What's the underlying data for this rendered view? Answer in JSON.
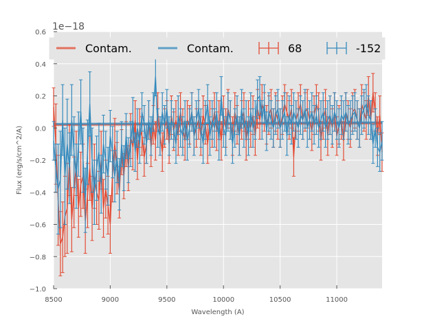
{
  "chart_data": {
    "type": "line",
    "xlabel": "Wavelength (A)",
    "ylabel": "Flux (erg/s/cm^2/A)",
    "y_offset_label": "1e−18",
    "xlim": [
      8500,
      11400
    ],
    "ylim": [
      -1.0,
      0.6
    ],
    "x_ticks": [
      8500,
      9000,
      9500,
      10000,
      10500,
      11000
    ],
    "x_tick_labels": [
      "8500",
      "9000",
      "9500",
      "10000",
      "10500",
      "11000"
    ],
    "y_ticks": [
      -1.0,
      -0.8,
      -0.6,
      -0.4,
      -0.2,
      0.0,
      0.2,
      0.4,
      0.6
    ],
    "y_tick_labels": [
      "−1.0",
      "−0.8",
      "−0.6",
      "−0.4",
      "−0.2",
      "0.0",
      "0.2",
      "0.4",
      "0.6"
    ],
    "grid": true,
    "legend_position": "top",
    "legend": [
      {
        "label": "Contam.",
        "kind": "line",
        "color": "#E24A33"
      },
      {
        "label": "Contam.",
        "kind": "line",
        "color": "#348ABD"
      },
      {
        "label": "68",
        "kind": "errorbar",
        "color": "#E24A33"
      },
      {
        "label": "-152",
        "kind": "errorbar",
        "color": "#348ABD"
      }
    ],
    "colors": {
      "red": "#E24A33",
      "blue": "#348ABD",
      "background": "#E5E5E5",
      "grid": "#FFFFFF"
    },
    "x": [
      8500,
      8520,
      8540,
      8560,
      8580,
      8600,
      8620,
      8640,
      8660,
      8680,
      8700,
      8720,
      8740,
      8760,
      8780,
      8800,
      8820,
      8840,
      8860,
      8880,
      8900,
      8920,
      8940,
      8960,
      8980,
      9000,
      9020,
      9040,
      9060,
      9080,
      9100,
      9120,
      9140,
      9160,
      9180,
      9200,
      9220,
      9240,
      9260,
      9280,
      9300,
      9320,
      9340,
      9360,
      9380,
      9400,
      9420,
      9440,
      9460,
      9480,
      9500,
      9520,
      9540,
      9560,
      9580,
      9600,
      9620,
      9640,
      9660,
      9680,
      9700,
      9720,
      9740,
      9760,
      9780,
      9800,
      9820,
      9840,
      9860,
      9880,
      9900,
      9920,
      9940,
      9960,
      9980,
      10000,
      10020,
      10040,
      10060,
      10080,
      10100,
      10120,
      10140,
      10160,
      10180,
      10200,
      10220,
      10240,
      10260,
      10280,
      10300,
      10320,
      10340,
      10360,
      10380,
      10400,
      10420,
      10440,
      10460,
      10480,
      10500,
      10520,
      10540,
      10560,
      10580,
      10600,
      10620,
      10640,
      10660,
      10680,
      10700,
      10720,
      10740,
      10760,
      10780,
      10800,
      10820,
      10840,
      10860,
      10880,
      10900,
      10920,
      10940,
      10960,
      10980,
      11000,
      11020,
      11040,
      11060,
      11080,
      11100,
      11120,
      11140,
      11160,
      11180,
      11200,
      11220,
      11240,
      11260,
      11280,
      11300,
      11320,
      11340,
      11360,
      11380,
      11400
    ],
    "series": [
      {
        "label": "68",
        "color": "#E24A33",
        "y": [
          0.13,
          -0.1,
          -0.45,
          -0.72,
          -0.68,
          -0.55,
          -0.5,
          -0.2,
          -0.57,
          -0.4,
          -0.22,
          -0.5,
          -0.35,
          -0.3,
          -0.58,
          -0.42,
          -0.25,
          -0.5,
          -0.3,
          -0.4,
          -0.45,
          -0.2,
          -0.5,
          -0.38,
          -0.48,
          -0.6,
          -0.3,
          -0.1,
          -0.25,
          -0.4,
          -0.15,
          -0.3,
          -0.1,
          -0.25,
          -0.05,
          -0.12,
          0.05,
          -0.2,
          0.0,
          -0.05,
          -0.18,
          -0.1,
          0.05,
          -0.12,
          0.02,
          -0.08,
          0.1,
          -0.05,
          -0.15,
          0.0,
          0.05,
          -0.1,
          0.08,
          -0.02,
          0.05,
          -0.05,
          0.1,
          0.0,
          -0.08,
          0.05,
          0.02,
          0.1,
          -0.05,
          0.0,
          0.05,
          -0.05,
          0.08,
          0.02,
          -0.1,
          0.05,
          0.0,
          0.1,
          -0.02,
          0.05,
          -0.08,
          0.08,
          0.0,
          0.12,
          0.05,
          -0.05,
          0.1,
          0.02,
          -0.05,
          0.05,
          0.1,
          -0.08,
          0.05,
          0.0,
          0.08,
          -0.05,
          0.12,
          0.05,
          0.15,
          0.1,
          0.02,
          0.08,
          0.12,
          0.0,
          0.1,
          0.05,
          0.0,
          0.08,
          0.15,
          0.1,
          0.05,
          0.12,
          -0.18,
          0.05,
          0.1,
          0.15,
          0.05,
          0.1,
          0.12,
          0.05,
          -0.02,
          0.08,
          0.15,
          0.1,
          -0.08,
          0.05,
          0.12,
          -0.05,
          0.08,
          0.0,
          0.1,
          -0.05,
          0.02,
          0.05,
          -0.08,
          0.1,
          0.05,
          0.0,
          0.1,
          0.12,
          0.05,
          0.0,
          0.15,
          0.1,
          0.05,
          0.2,
          0.05,
          0.22,
          0.1,
          -0.05,
          0.08,
          -0.15
        ],
        "err": [
          0.12,
          0.25,
          0.28,
          0.2,
          0.22,
          0.25,
          0.28,
          0.22,
          0.2,
          0.22,
          0.2,
          0.18,
          0.2,
          0.2,
          0.2,
          0.2,
          0.2,
          0.2,
          0.2,
          0.2,
          0.18,
          0.18,
          0.18,
          0.18,
          0.18,
          0.18,
          0.16,
          0.16,
          0.16,
          0.16,
          0.14,
          0.14,
          0.14,
          0.14,
          0.14,
          0.14,
          0.12,
          0.12,
          0.12,
          0.12,
          0.12,
          0.12,
          0.12,
          0.12,
          0.12,
          0.12,
          0.12,
          0.12,
          0.12,
          0.12,
          0.12,
          0.12,
          0.12,
          0.12,
          0.12,
          0.12,
          0.12,
          0.12,
          0.12,
          0.12,
          0.12,
          0.12,
          0.12,
          0.12,
          0.12,
          0.12,
          0.12,
          0.12,
          0.12,
          0.12,
          0.12,
          0.12,
          0.12,
          0.12,
          0.12,
          0.12,
          0.12,
          0.12,
          0.12,
          0.12,
          0.12,
          0.12,
          0.12,
          0.12,
          0.12,
          0.12,
          0.12,
          0.12,
          0.12,
          0.12,
          0.12,
          0.12,
          0.12,
          0.12,
          0.12,
          0.12,
          0.12,
          0.12,
          0.12,
          0.12,
          0.12,
          0.12,
          0.12,
          0.12,
          0.12,
          0.12,
          0.12,
          0.12,
          0.12,
          0.12,
          0.12,
          0.12,
          0.12,
          0.12,
          0.12,
          0.12,
          0.12,
          0.12,
          0.12,
          0.12,
          0.12,
          0.12,
          0.12,
          0.12,
          0.12,
          0.12,
          0.12,
          0.12,
          0.12,
          0.12,
          0.12,
          0.12,
          0.12,
          0.12,
          0.12,
          0.12,
          0.12,
          0.12,
          0.12,
          0.12,
          0.12,
          0.12,
          0.12,
          0.12,
          0.12,
          0.12
        ]
      },
      {
        "label": "-152",
        "color": "#348ABD",
        "y": [
          -0.08,
          -0.25,
          -0.38,
          -0.32,
          0.05,
          -0.3,
          -0.1,
          -0.25,
          0.05,
          -0.15,
          -0.3,
          -0.1,
          0.1,
          -0.2,
          -0.45,
          -0.15,
          0.15,
          -0.2,
          -0.4,
          -0.25,
          -0.15,
          -0.35,
          -0.1,
          -0.2,
          -0.3,
          -0.05,
          -0.15,
          -0.3,
          -0.18,
          -0.35,
          -0.1,
          -0.25,
          -0.05,
          -0.2,
          -0.1,
          0.05,
          -0.15,
          0.0,
          -0.1,
          0.1,
          0.02,
          -0.1,
          0.05,
          -0.05,
          0.1,
          0.32,
          0.0,
          -0.05,
          0.1,
          0.02,
          0.12,
          -0.05,
          0.05,
          0.0,
          -0.1,
          0.08,
          0.0,
          -0.05,
          0.05,
          -0.08,
          0.0,
          0.1,
          -0.05,
          0.05,
          0.12,
          0.0,
          -0.1,
          0.05,
          0.15,
          -0.05,
          0.05,
          0.0,
          0.1,
          -0.08,
          0.2,
          0.0,
          -0.05,
          0.1,
          0.05,
          -0.1,
          0.0,
          0.08,
          -0.05,
          0.12,
          0.0,
          0.05,
          -0.05,
          0.1,
          0.0,
          0.05,
          0.18,
          0.2,
          0.05,
          0.15,
          -0.02,
          0.1,
          0.05,
          0.0,
          0.08,
          0.12,
          0.0,
          0.05,
          0.1,
          -0.05,
          0.08,
          0.02,
          0.1,
          0.05,
          0.0,
          0.08,
          0.05,
          0.12,
          0.0,
          0.05,
          0.1,
          0.02,
          0.08,
          0.0,
          0.05,
          0.1,
          0.0,
          0.05,
          0.08,
          0.02,
          0.1,
          0.05,
          0.0,
          0.08,
          0.05,
          0.1,
          0.02,
          0.05,
          0.08,
          0.1,
          0.05,
          0.0,
          0.08,
          0.12,
          0.15,
          0.08,
          0.05,
          -0.1,
          0.0,
          -0.12,
          -0.15,
          -0.08
        ],
        "err": [
          0.12,
          0.15,
          0.28,
          0.3,
          0.22,
          0.3,
          0.28,
          0.22,
          0.22,
          0.22,
          0.2,
          0.2,
          0.2,
          0.2,
          0.2,
          0.2,
          0.2,
          0.2,
          0.2,
          0.2,
          0.18,
          0.18,
          0.18,
          0.18,
          0.18,
          0.16,
          0.16,
          0.16,
          0.16,
          0.16,
          0.14,
          0.14,
          0.14,
          0.14,
          0.14,
          0.14,
          0.12,
          0.12,
          0.12,
          0.12,
          0.12,
          0.12,
          0.12,
          0.12,
          0.12,
          0.12,
          0.12,
          0.12,
          0.12,
          0.12,
          0.12,
          0.12,
          0.12,
          0.12,
          0.12,
          0.12,
          0.12,
          0.12,
          0.12,
          0.12,
          0.12,
          0.12,
          0.12,
          0.12,
          0.12,
          0.12,
          0.12,
          0.12,
          0.12,
          0.12,
          0.12,
          0.12,
          0.12,
          0.12,
          0.12,
          0.12,
          0.12,
          0.12,
          0.12,
          0.12,
          0.12,
          0.12,
          0.12,
          0.12,
          0.12,
          0.12,
          0.12,
          0.12,
          0.12,
          0.12,
          0.12,
          0.12,
          0.12,
          0.12,
          0.12,
          0.12,
          0.12,
          0.12,
          0.12,
          0.12,
          0.12,
          0.12,
          0.12,
          0.12,
          0.12,
          0.12,
          0.12,
          0.12,
          0.12,
          0.12,
          0.12,
          0.12,
          0.12,
          0.12,
          0.12,
          0.12,
          0.12,
          0.12,
          0.12,
          0.12,
          0.12,
          0.12,
          0.12,
          0.12,
          0.12,
          0.12,
          0.12,
          0.12,
          0.12,
          0.12,
          0.12,
          0.12,
          0.12,
          0.12,
          0.12,
          0.12,
          0.12,
          0.12,
          0.12,
          0.12,
          0.12,
          0.12,
          0.12,
          0.12,
          0.12,
          0.12
        ]
      }
    ],
    "contam": [
      {
        "label": "Contam.",
        "color": "#E24A33",
        "x": [
          8500,
          11400
        ],
        "y": [
          0.02,
          0.03
        ]
      },
      {
        "label": "Contam.",
        "color": "#348ABD",
        "x": [
          8500,
          11400
        ],
        "y": [
          0.025,
          0.035
        ]
      }
    ]
  }
}
